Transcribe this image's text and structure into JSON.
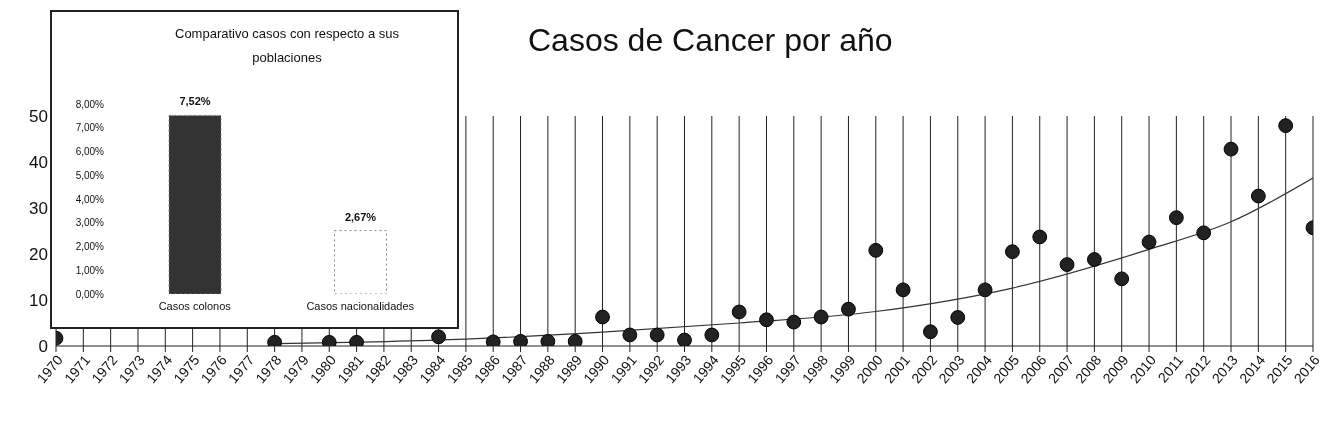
{
  "chart_data": [
    {
      "type": "scatter",
      "title": "Casos de Cancer por año",
      "xlim": [
        1970,
        2016
      ],
      "xticks": [
        1970,
        1971,
        1972,
        1973,
        1974,
        1975,
        1976,
        1977,
        1978,
        1979,
        1980,
        1981,
        1982,
        1983,
        1984,
        1985,
        1986,
        1987,
        1988,
        1989,
        1990,
        1991,
        1992,
        1993,
        1994,
        1995,
        1996,
        1997,
        1998,
        1999,
        2000,
        2001,
        2002,
        2003,
        2004,
        2005,
        2006,
        2007,
        2008,
        2009,
        2010,
        2011,
        2012,
        2013,
        2014,
        2015,
        2016
      ],
      "ylim": [
        0,
        50
      ],
      "yticks": [
        0,
        10,
        20,
        30,
        40,
        50
      ],
      "grid": "x",
      "series": [
        {
          "type": "scatter",
          "marker": "circle",
          "color": "#222222",
          "x": [
            1970,
            1978,
            1980,
            1981,
            1984,
            1986,
            1987,
            1988,
            1989,
            1990,
            1991,
            1992,
            1993,
            1994,
            1995,
            1996,
            1997,
            1998,
            1999,
            2000,
            2001,
            2002,
            2003,
            2004,
            2005,
            2006,
            2007,
            2008,
            2009,
            2010,
            2011,
            2012,
            2013,
            2014,
            2015,
            2016
          ],
          "values": [
            1.7,
            0.8,
            0.8,
            0.8,
            2,
            0.9,
            1,
            1,
            1,
            6.3,
            2.4,
            2.4,
            1.3,
            2.4,
            7.4,
            5.7,
            5.2,
            6.3,
            8,
            20.8,
            12.2,
            3.1,
            6.2,
            12.2,
            20.5,
            23.7,
            17.7,
            18.8,
            14.6,
            22.6,
            27.9,
            24.6,
            42.8,
            32.6,
            47.9,
            25.7
          ]
        },
        {
          "type": "line",
          "color": "#333333",
          "x": [
            1978,
            1985,
            1990,
            1995,
            2000,
            2005,
            2010,
            2013,
            2016
          ],
          "values": [
            0.5,
            1.5,
            3,
            5,
            7.5,
            12.6,
            21,
            27,
            36.5
          ]
        }
      ]
    },
    {
      "type": "bar",
      "title": "Comparativo casos con respecto a sus poblaciones",
      "categories": [
        "Casos colonos",
        "Casos nacionalidades"
      ],
      "values": [
        7.52,
        2.67
      ],
      "colors": [
        "#333333",
        "#ffffff"
      ],
      "value_labels": [
        "7,52%",
        "2,67%"
      ],
      "ylim": [
        0,
        8
      ],
      "yticks": [
        {
          "value": 0,
          "label": "0,00%"
        },
        {
          "value": 1,
          "label": "1,00%"
        },
        {
          "value": 2,
          "label": "2,00%"
        },
        {
          "value": 3,
          "label": "3,00%"
        },
        {
          "value": 4,
          "label": "4,00%"
        },
        {
          "value": 5,
          "label": "5,00%"
        },
        {
          "value": 6,
          "label": "6,00%"
        },
        {
          "value": 7,
          "label": "7,00%"
        },
        {
          "value": 8,
          "label": "8,00%"
        }
      ]
    }
  ]
}
